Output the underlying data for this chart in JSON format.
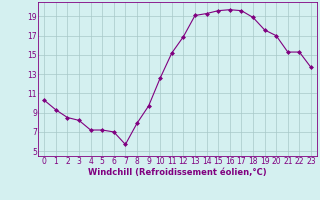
{
  "x": [
    0,
    1,
    2,
    3,
    4,
    5,
    6,
    7,
    8,
    9,
    10,
    11,
    12,
    13,
    14,
    15,
    16,
    17,
    18,
    19,
    20,
    21,
    22,
    23
  ],
  "y": [
    10.3,
    9.3,
    8.5,
    8.2,
    7.2,
    7.2,
    7.0,
    5.7,
    7.9,
    9.7,
    12.6,
    15.2,
    16.9,
    19.1,
    19.3,
    19.6,
    19.7,
    19.6,
    18.9,
    17.6,
    17.0,
    15.3,
    15.3,
    13.7
  ],
  "xlabel": "Windchill (Refroidissement éolien,°C)",
  "xlim": [
    -0.5,
    23.5
  ],
  "ylim": [
    4.5,
    20.5
  ],
  "yticks": [
    5,
    7,
    9,
    11,
    13,
    15,
    17,
    19
  ],
  "xticks": [
    0,
    1,
    2,
    3,
    4,
    5,
    6,
    7,
    8,
    9,
    10,
    11,
    12,
    13,
    14,
    15,
    16,
    17,
    18,
    19,
    20,
    21,
    22,
    23
  ],
  "line_color": "#800080",
  "marker": "D",
  "marker_size": 2,
  "bg_color": "#d4f0f0",
  "grid_color": "#a8c8c8",
  "tick_color": "#800080",
  "label_color": "#800080",
  "tick_fontsize": 5.5,
  "xlabel_fontsize": 6.0
}
